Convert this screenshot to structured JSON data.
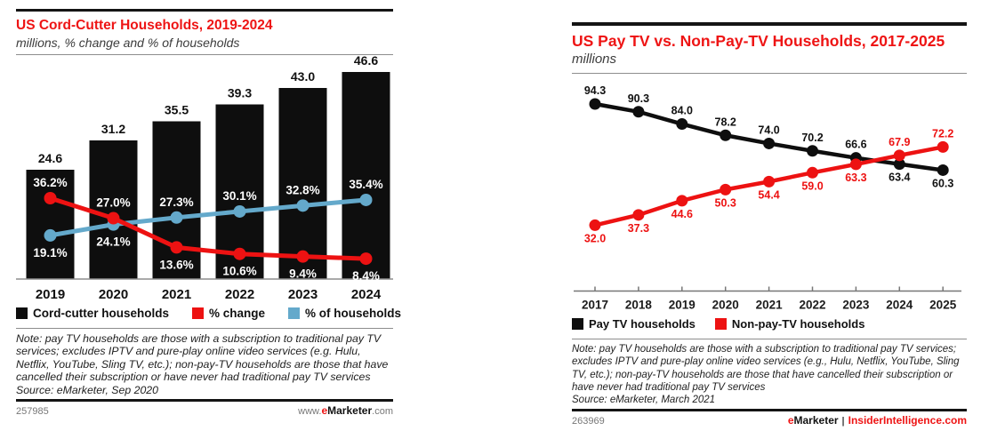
{
  "accent_red": "#ee1414",
  "charts": [
    {
      "note": "Note: pay TV households are those with a subscription to traditional pay TV services; excludes IPTV and pure-play online video services (e.g. Hulu, Netflix, YouTube, Sling TV, etc.); non-pay-TV households are those that have cancelled their subscription or have never had traditional pay TV services",
      "source": "Source: eMarketer, Sep 2020",
      "footer_id": "257985",
      "footer_brand": {
        "prefix": "www.",
        "e": "e",
        "name": "Marketer",
        "suffix": ".com"
      }
    },
    {
      "note": "Note: pay TV households are those with a subscription to traditional pay TV services; excludes IPTV and pure-play online video services (e.g., Hulu, Netflix, YouTube, Sling TV, etc.); non-pay-TV households are those that have cancelled their subscription or have never had traditional pay TV services",
      "source": "Source: eMarketer, March 2021",
      "footer_id": "263969",
      "footer_brand": {
        "e": "e",
        "name": "Marketer",
        "sep": "|",
        "site": "InsiderIntelligence.com"
      }
    }
  ],
  "chart_data": [
    {
      "type": "bar",
      "subtype": "combo-bar-line",
      "title": "US Cord-Cutter Households, 2019-2024",
      "subtitle": "millions, % change and % of households",
      "categories": [
        "2019",
        "2020",
        "2021",
        "2022",
        "2023",
        "2024"
      ],
      "series": [
        {
          "name": "Cord-cutter households",
          "type": "bar",
          "color": "#0e0e0e",
          "values": [
            24.6,
            31.2,
            35.5,
            39.3,
            43.0,
            46.6
          ],
          "unit": "millions"
        },
        {
          "name": "% change",
          "type": "line",
          "color": "#ed1212",
          "values": [
            36.2,
            27.0,
            13.6,
            10.6,
            9.4,
            8.4
          ],
          "unit": "%",
          "label_side": [
            "above",
            "above",
            "below",
            "below",
            "below",
            "below"
          ]
        },
        {
          "name": "% of households",
          "type": "line",
          "color": "#64a9cb",
          "values": [
            19.1,
            24.1,
            27.3,
            30.1,
            32.8,
            35.4
          ],
          "unit": "%",
          "label_side": [
            "below",
            "below",
            "above",
            "above",
            "above",
            "above"
          ]
        }
      ],
      "ylim_bars": [
        0,
        50
      ],
      "ylim_lines": [
        0,
        40
      ],
      "grid": false,
      "legend_position": "bottom"
    },
    {
      "type": "line",
      "title": "US Pay TV vs. Non-Pay-TV Households, 2017-2025",
      "subtitle": "millions",
      "categories": [
        "2017",
        "2018",
        "2019",
        "2020",
        "2021",
        "2022",
        "2023",
        "2024",
        "2025"
      ],
      "series": [
        {
          "name": "Pay TV households",
          "type": "line",
          "color": "#0e0e0e",
          "values": [
            94.3,
            90.3,
            84.0,
            78.2,
            74.0,
            70.2,
            66.6,
            63.4,
            60.3
          ],
          "unit": "millions",
          "label_side": [
            "above",
            "above",
            "above",
            "above",
            "above",
            "above",
            "above",
            "below",
            "below"
          ]
        },
        {
          "name": "Non-pay-TV households",
          "type": "line",
          "color": "#ed1212",
          "values": [
            32.0,
            37.3,
            44.6,
            50.3,
            54.4,
            59.0,
            63.3,
            67.9,
            72.2
          ],
          "unit": "millions",
          "label_side": [
            "below",
            "below",
            "below",
            "below",
            "below",
            "below",
            "below",
            "above",
            "above"
          ]
        }
      ],
      "ylim": [
        25,
        100
      ],
      "grid": false,
      "legend_position": "bottom"
    }
  ]
}
